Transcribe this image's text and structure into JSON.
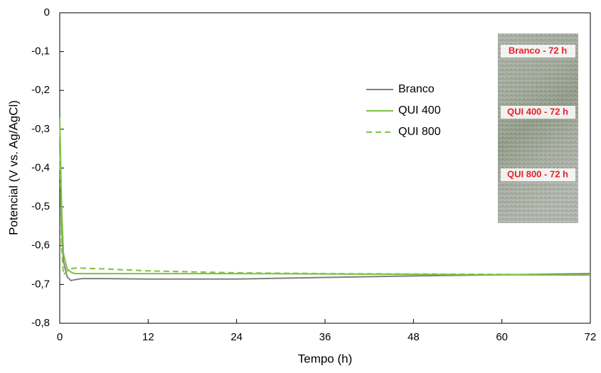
{
  "chart_data": {
    "type": "line",
    "x_label": "Tempo (h)",
    "y_label": "Potencial (V vs. Ag/AgCl)",
    "x": [
      0,
      0.25,
      0.5,
      1,
      1.5,
      2,
      3,
      6,
      12,
      24,
      36,
      48,
      60,
      72
    ],
    "series": [
      {
        "name": "Branco",
        "color": "#808080",
        "dashed": false,
        "values": [
          -0.33,
          -0.55,
          -0.64,
          -0.68,
          -0.69,
          -0.688,
          -0.685,
          -0.685,
          -0.686,
          -0.686,
          -0.682,
          -0.678,
          -0.675,
          -0.672
        ]
      },
      {
        "name": "QUI 400",
        "color": "#7dc242",
        "dashed": false,
        "values": [
          -0.27,
          -0.5,
          -0.62,
          -0.66,
          -0.668,
          -0.672,
          -0.672,
          -0.672,
          -0.672,
          -0.672,
          -0.673,
          -0.674,
          -0.675,
          -0.676
        ]
      },
      {
        "name": "QUI 800",
        "color": "#7dc242",
        "dashed": true,
        "values": [
          -0.32,
          -0.6,
          -0.675,
          -0.665,
          -0.66,
          -0.658,
          -0.658,
          -0.66,
          -0.665,
          -0.67,
          -0.672,
          -0.673,
          -0.674,
          -0.676
        ]
      }
    ],
    "xlim": [
      0,
      72
    ],
    "xticks": [
      0,
      12,
      24,
      36,
      48,
      60,
      72
    ],
    "ylim": [
      -0.8,
      0
    ],
    "yticks": [
      0,
      {
        "value": -0.1,
        "label": "-0,1"
      },
      {
        "value": -0.2,
        "label": "-0,2"
      },
      {
        "value": -0.3,
        "label": "-0,3"
      },
      {
        "value": -0.4,
        "label": "-0,4"
      },
      {
        "value": -0.5,
        "label": "-0,5"
      },
      {
        "value": -0.6,
        "label": "-0,6"
      },
      {
        "value": -0.7,
        "label": "-0,7"
      },
      {
        "value": -0.8,
        "label": "-0,8"
      }
    ],
    "grid": false,
    "legend": "upper center",
    "inset_labels": [
      "Branco - 72 h",
      "QUI 400 - 72 h",
      "QUI 800 - 72 h"
    ]
  }
}
